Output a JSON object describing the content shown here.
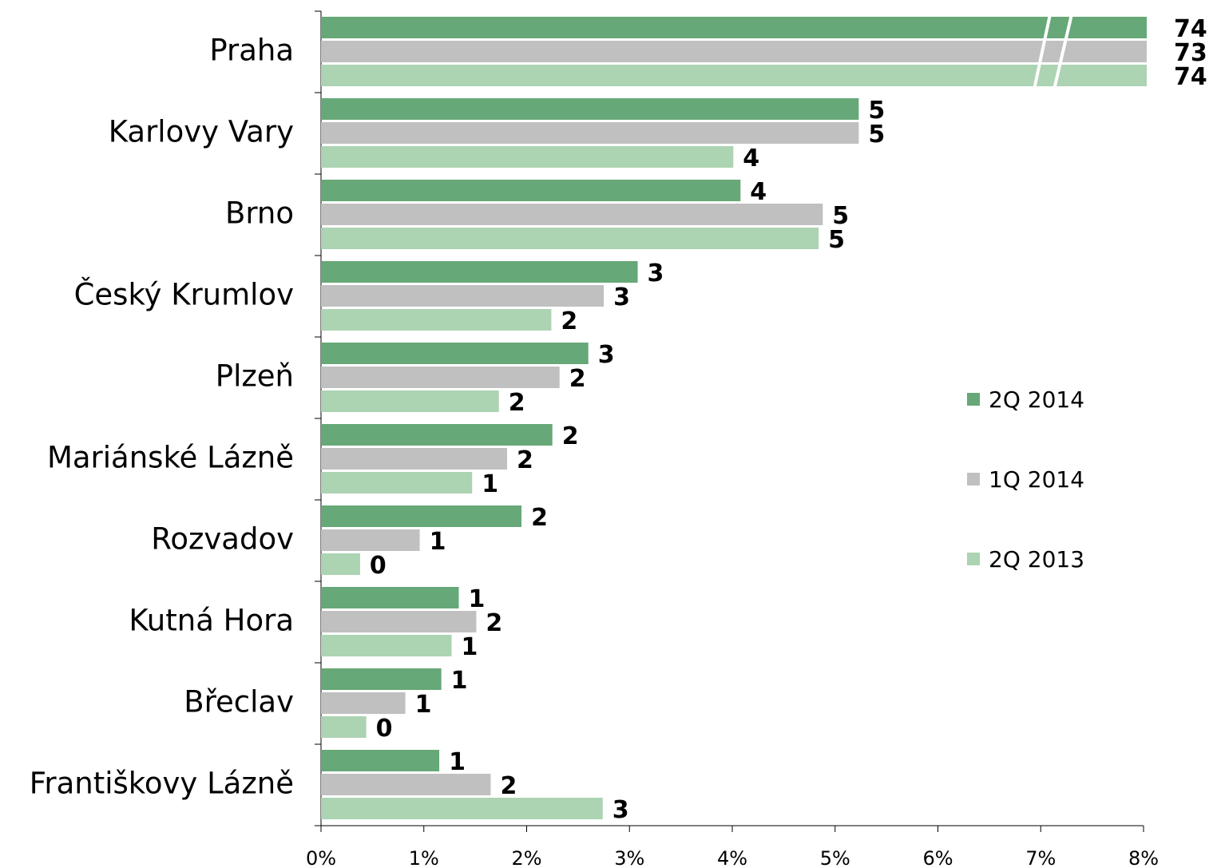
{
  "chart_data": {
    "type": "bar",
    "orientation": "horizontal",
    "categories": [
      "Praha",
      "Karlovy Vary",
      "Brno",
      "Český Krumlov",
      "Plzeň",
      "Mariánské Lázně",
      "Rozvadov",
      "Kutná Hora",
      "Břeclav",
      "Františkovy Lázně"
    ],
    "series": [
      {
        "name": "2Q 2014",
        "color": "#66a877",
        "values": [
          74,
          5.23,
          4.08,
          3.08,
          2.6,
          2.25,
          1.95,
          1.34,
          1.17,
          1.15
        ],
        "value_labels": [
          "74",
          "5",
          "4",
          "3",
          "3",
          "2",
          "2",
          "1",
          "1",
          "1"
        ]
      },
      {
        "name": "1Q 2014",
        "color": "#c0c0c0",
        "values": [
          73,
          5.23,
          4.88,
          2.75,
          2.32,
          1.81,
          0.96,
          1.51,
          0.82,
          1.65
        ],
        "value_labels": [
          "73",
          "5",
          "5",
          "3",
          "2",
          "2",
          "1",
          "2",
          "1",
          "2"
        ]
      },
      {
        "name": "2Q 2013",
        "color": "#acd3b2",
        "values": [
          74,
          4.01,
          4.84,
          2.24,
          1.73,
          1.47,
          0.38,
          1.27,
          0.44,
          2.74
        ],
        "value_labels": [
          "74",
          "4",
          "5",
          "2",
          "2",
          "1",
          "0",
          "1",
          "0",
          "3"
        ]
      }
    ],
    "xlim": [
      0,
      8
    ],
    "xticks": [
      {
        "value": 0,
        "label": "0%"
      },
      {
        "value": 1,
        "label": "1%"
      },
      {
        "value": 2,
        "label": "2%"
      },
      {
        "value": 3,
        "label": "3%"
      },
      {
        "value": 4,
        "label": "4%"
      },
      {
        "value": 5,
        "label": "5%"
      },
      {
        "value": 6,
        "label": "6%"
      },
      {
        "value": 7,
        "label": "7%"
      },
      {
        "value": 8,
        "label": "8%"
      }
    ],
    "legend": "right",
    "axis_break": true
  }
}
